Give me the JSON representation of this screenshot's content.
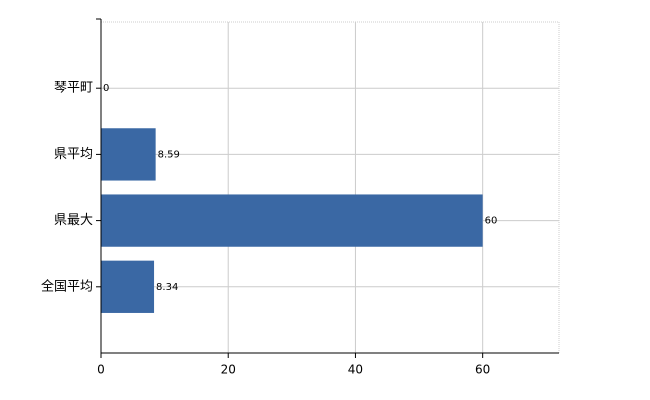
{
  "chart_data": {
    "type": "hbar",
    "categories": [
      "琴平町",
      "県平均",
      "県最大",
      "全国平均"
    ],
    "values": [
      0,
      8.59,
      60,
      8.34
    ],
    "color": "#3a68a4",
    "xlim": [
      0,
      72
    ],
    "xticks": [
      0,
      20,
      40,
      60
    ],
    "grid": true
  }
}
